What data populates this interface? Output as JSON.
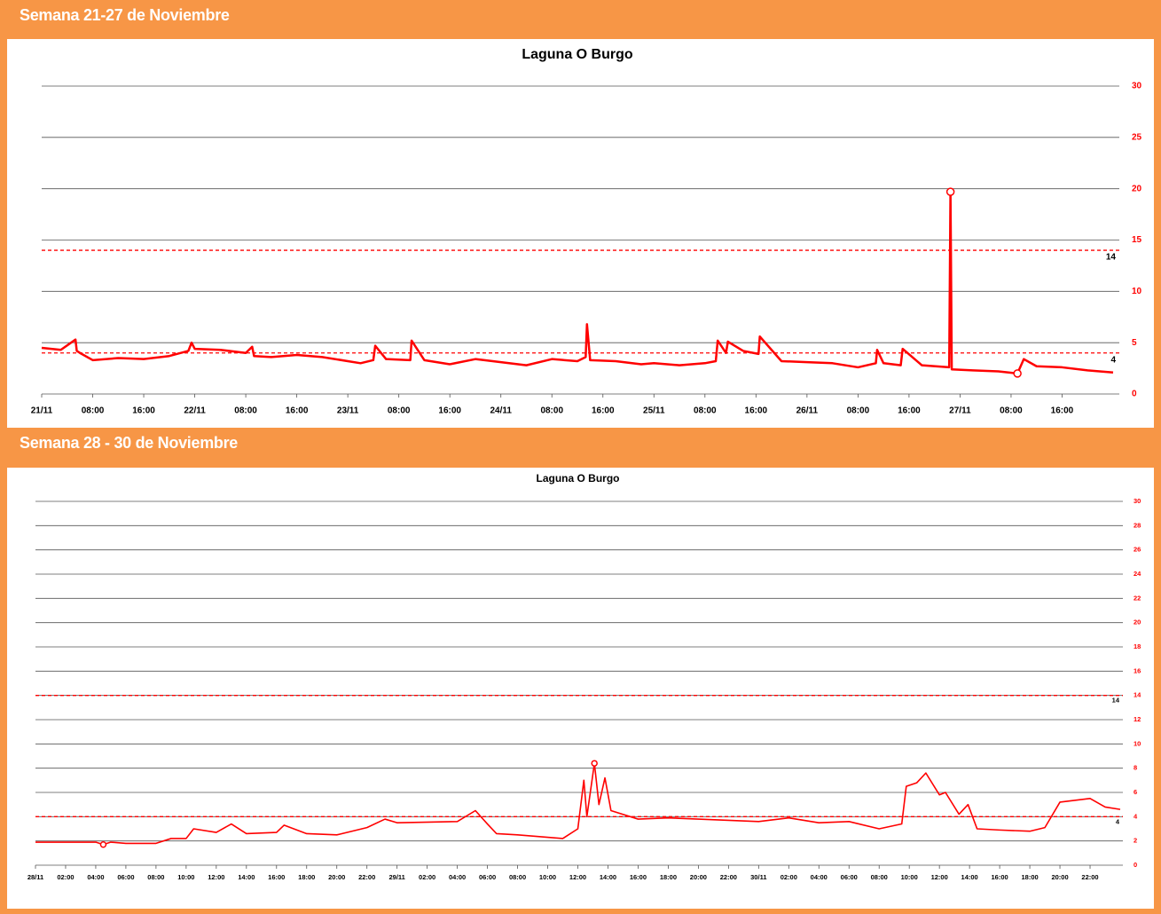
{
  "sections": [
    {
      "header": "Semana 21-27 de Noviembre"
    },
    {
      "header": "Semana 28 - 30 de Noviembre"
    }
  ],
  "chart_data": [
    {
      "type": "line",
      "title": "Laguna O Burgo",
      "color": "#ff0000",
      "grid": true,
      "yaxis_position": "right",
      "xlim": [
        0,
        168
      ],
      "ylim": [
        0,
        30
      ],
      "yticks": [
        0,
        5,
        10,
        15,
        20,
        25,
        30
      ],
      "xticks": [
        {
          "value": 0,
          "label": "21/11"
        },
        {
          "value": 8,
          "label": "08:00"
        },
        {
          "value": 16,
          "label": "16:00"
        },
        {
          "value": 24,
          "label": "22/11"
        },
        {
          "value": 32,
          "label": "08:00"
        },
        {
          "value": 40,
          "label": "16:00"
        },
        {
          "value": 48,
          "label": "23/11"
        },
        {
          "value": 56,
          "label": "08:00"
        },
        {
          "value": 64,
          "label": "16:00"
        },
        {
          "value": 72,
          "label": "24/11"
        },
        {
          "value": 80,
          "label": "08:00"
        },
        {
          "value": 88,
          "label": "16:00"
        },
        {
          "value": 96,
          "label": "25/11"
        },
        {
          "value": 104,
          "label": "08:00"
        },
        {
          "value": 112,
          "label": "16:00"
        },
        {
          "value": 120,
          "label": "26/11"
        },
        {
          "value": 128,
          "label": "08:00"
        },
        {
          "value": 136,
          "label": "16:00"
        },
        {
          "value": 144,
          "label": "27/11"
        },
        {
          "value": 152,
          "label": "08:00"
        },
        {
          "value": 160,
          "label": "16:00"
        }
      ],
      "reference_lines": [
        14,
        4
      ],
      "x": [
        0,
        3,
        5.3,
        5.5,
        6,
        8,
        12,
        16,
        20,
        23,
        23.5,
        24,
        28,
        32,
        33,
        33.3,
        36,
        40,
        44,
        48,
        50,
        52,
        52.3,
        54,
        57.8,
        58,
        60,
        64,
        68,
        72,
        76,
        80,
        84,
        85.3,
        85.5,
        86,
        90,
        94,
        96,
        100,
        104,
        105.7,
        106,
        107.3,
        107.6,
        110,
        112.4,
        112.6,
        116,
        120,
        124,
        128,
        130.8,
        131,
        132,
        134.7,
        135,
        138,
        142.3,
        142.5,
        142.7,
        146,
        150,
        153,
        154,
        156,
        160,
        164,
        168
      ],
      "values": [
        4.5,
        4.3,
        5.3,
        4.2,
        4.0,
        3.3,
        3.5,
        3.4,
        3.7,
        4.2,
        5.0,
        4.4,
        4.3,
        4.0,
        4.6,
        3.7,
        3.6,
        3.8,
        3.6,
        3.2,
        3.0,
        3.3,
        4.7,
        3.4,
        3.3,
        5.2,
        3.3,
        2.9,
        3.4,
        3.1,
        2.8,
        3.4,
        3.2,
        3.6,
        6.8,
        3.3,
        3.2,
        2.9,
        3.0,
        2.8,
        3.0,
        3.2,
        5.2,
        4.0,
        5.1,
        4.2,
        3.9,
        5.6,
        3.2,
        3.1,
        3.0,
        2.6,
        3.0,
        4.3,
        3.0,
        2.8,
        4.4,
        2.8,
        2.6,
        19.7,
        2.4,
        2.3,
        2.2,
        2.0,
        3.4,
        2.7,
        2.6,
        2.3,
        2.1
      ]
    },
    {
      "type": "line",
      "title": "Laguna O Burgo",
      "color": "#ff0000",
      "grid": true,
      "yaxis_position": "right",
      "xlim": [
        0,
        72
      ],
      "ylim": [
        0,
        30
      ],
      "yticks": [
        0,
        2,
        4,
        6,
        8,
        10,
        12,
        14,
        16,
        18,
        20,
        22,
        24,
        26,
        28,
        30
      ],
      "xticks": [
        {
          "value": 0,
          "label": "28/11"
        },
        {
          "value": 2,
          "label": "02:00"
        },
        {
          "value": 4,
          "label": "04:00"
        },
        {
          "value": 6,
          "label": "06:00"
        },
        {
          "value": 8,
          "label": "08:00"
        },
        {
          "value": 10,
          "label": "10:00"
        },
        {
          "value": 12,
          "label": "12:00"
        },
        {
          "value": 14,
          "label": "14:00"
        },
        {
          "value": 16,
          "label": "16:00"
        },
        {
          "value": 18,
          "label": "18:00"
        },
        {
          "value": 20,
          "label": "20:00"
        },
        {
          "value": 22,
          "label": "22:00"
        },
        {
          "value": 24,
          "label": "29/11"
        },
        {
          "value": 26,
          "label": "02:00"
        },
        {
          "value": 28,
          "label": "04:00"
        },
        {
          "value": 30,
          "label": "06:00"
        },
        {
          "value": 32,
          "label": "08:00"
        },
        {
          "value": 34,
          "label": "10:00"
        },
        {
          "value": 36,
          "label": "12:00"
        },
        {
          "value": 38,
          "label": "14:00"
        },
        {
          "value": 40,
          "label": "16:00"
        },
        {
          "value": 42,
          "label": "18:00"
        },
        {
          "value": 44,
          "label": "20:00"
        },
        {
          "value": 46,
          "label": "22:00"
        },
        {
          "value": 48,
          "label": "30/11"
        },
        {
          "value": 50,
          "label": "02:00"
        },
        {
          "value": 52,
          "label": "04:00"
        },
        {
          "value": 54,
          "label": "06:00"
        },
        {
          "value": 56,
          "label": "08:00"
        },
        {
          "value": 58,
          "label": "10:00"
        },
        {
          "value": 60,
          "label": "12:00"
        },
        {
          "value": 62,
          "label": "14:00"
        },
        {
          "value": 64,
          "label": "16:00"
        },
        {
          "value": 66,
          "label": "18:00"
        },
        {
          "value": 68,
          "label": "20:00"
        },
        {
          "value": 70,
          "label": "22:00"
        }
      ],
      "reference_lines": [
        14,
        4
      ],
      "x": [
        0,
        2,
        4,
        4.5,
        5,
        6,
        8,
        9,
        10,
        10.5,
        12,
        13,
        14,
        16,
        16.5,
        18,
        20,
        22,
        23.2,
        24,
        28,
        29.2,
        30,
        30.6,
        32,
        34,
        35,
        36,
        36.4,
        36.6,
        37.1,
        37.4,
        37.8,
        38.2,
        40,
        42,
        44,
        46,
        48,
        50,
        52,
        54,
        56,
        57.5,
        57.8,
        58.5,
        59.1,
        60,
        60.4,
        61.3,
        61.9,
        62.5,
        64,
        66,
        67,
        68,
        70,
        71,
        72
      ],
      "values": [
        1.9,
        1.9,
        1.9,
        1.7,
        1.9,
        1.8,
        1.8,
        2.2,
        2.2,
        3.0,
        2.7,
        3.4,
        2.6,
        2.7,
        3.3,
        2.6,
        2.5,
        3.1,
        3.8,
        3.5,
        3.6,
        4.5,
        3.4,
        2.6,
        2.5,
        2.3,
        2.2,
        3.0,
        7.0,
        4.0,
        8.4,
        5.0,
        7.2,
        4.5,
        3.8,
        3.9,
        3.8,
        3.7,
        3.6,
        3.9,
        3.5,
        3.6,
        3.0,
        3.4,
        6.5,
        6.8,
        7.6,
        5.8,
        6.0,
        4.2,
        5.0,
        3.0,
        2.9,
        2.8,
        3.1,
        5.2,
        5.5,
        4.8,
        4.6
      ]
    }
  ]
}
